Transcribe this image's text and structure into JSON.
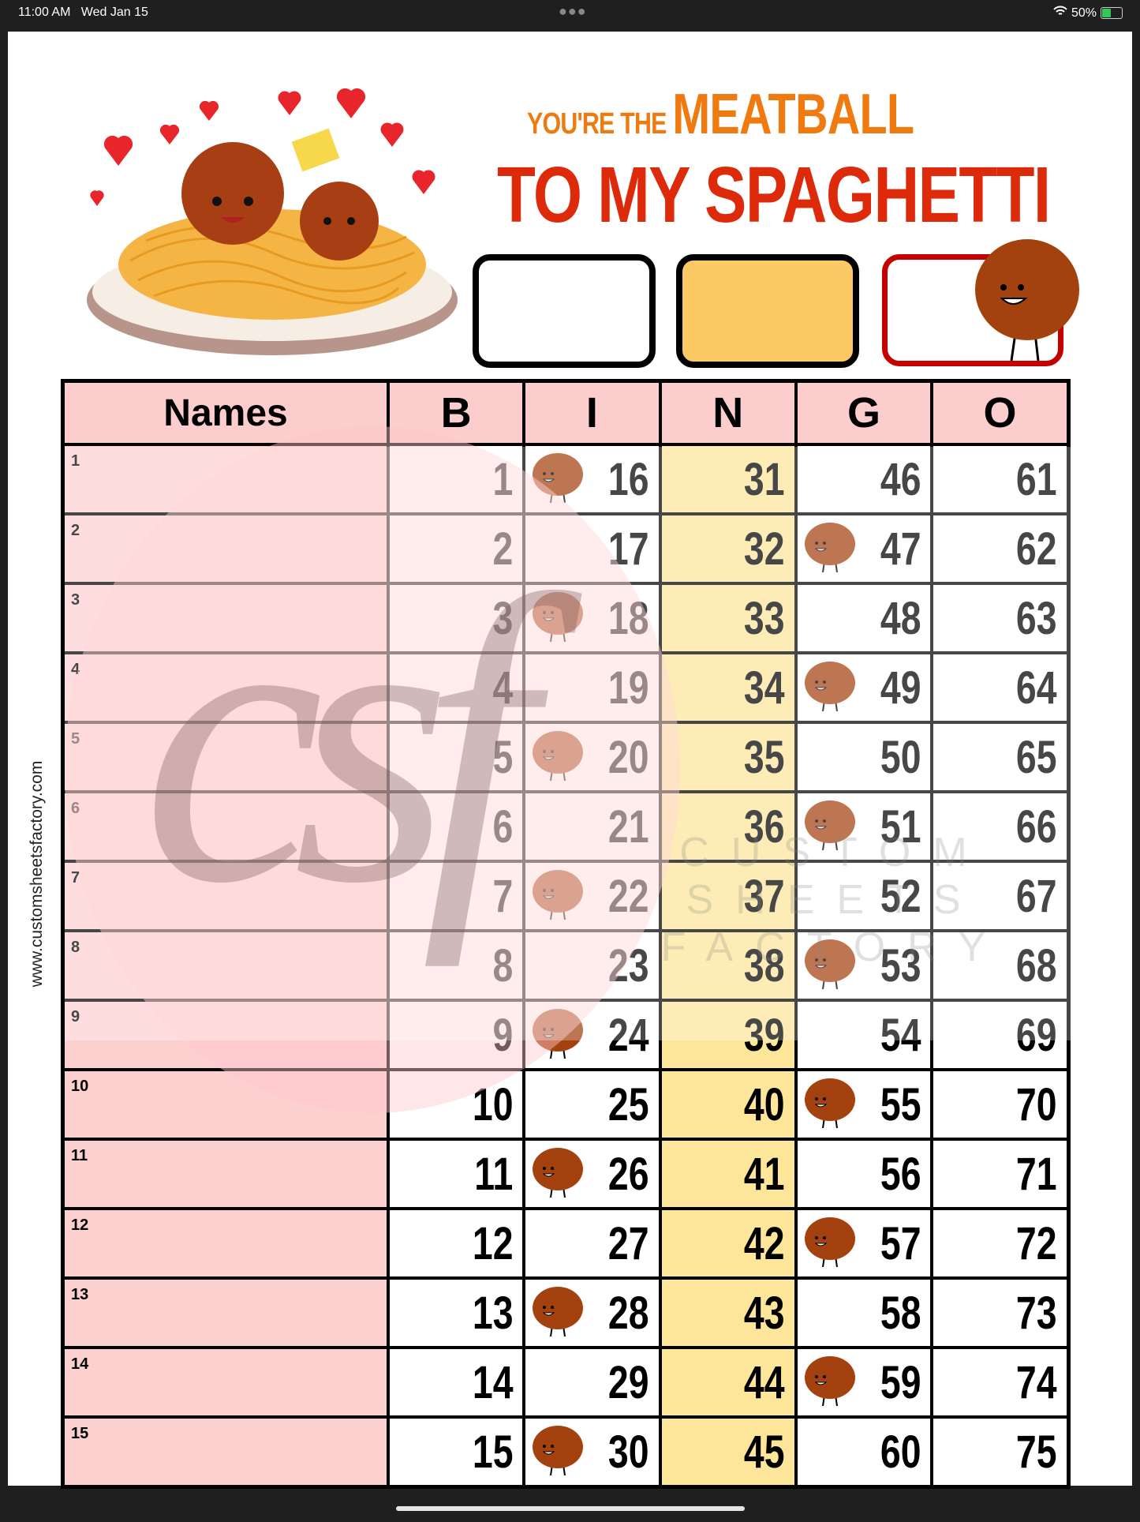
{
  "status_bar": {
    "time": "11:00 AM",
    "date": "Wed Jan 15",
    "battery": "50%",
    "battery_level": 0.5
  },
  "title": {
    "line1_small": "YOU'RE THE",
    "line1_big": "MEATBALL",
    "line2": "TO MY SPAGHETTI"
  },
  "color_boxes": [
    {
      "name": "white",
      "fill": "#ffffff",
      "border": "#000000"
    },
    {
      "name": "yellow",
      "fill": "#fdc964",
      "border": "#000000"
    },
    {
      "name": "red-outline",
      "fill": "#ffffff",
      "border": "#c40000"
    }
  ],
  "side_url": "www.customsheetsfactory.com",
  "watermark": {
    "logo": "csf",
    "text_line1": "CUSTOM SHEETS",
    "text_line2": "FACTORY"
  },
  "table": {
    "headers": [
      "Names",
      "B",
      "I",
      "N",
      "G",
      "O"
    ],
    "rows": [
      {
        "label": "1",
        "B": "1",
        "I": "16",
        "N": "31",
        "G": "46",
        "O": "61",
        "I_icon": true,
        "G_icon": false
      },
      {
        "label": "2",
        "B": "2",
        "I": "17",
        "N": "32",
        "G": "47",
        "O": "62",
        "I_icon": false,
        "G_icon": true
      },
      {
        "label": "3",
        "B": "3",
        "I": "18",
        "N": "33",
        "G": "48",
        "O": "63",
        "I_icon": true,
        "G_icon": false
      },
      {
        "label": "4",
        "B": "4",
        "I": "19",
        "N": "34",
        "G": "49",
        "O": "64",
        "I_icon": false,
        "G_icon": true
      },
      {
        "label": "5",
        "B": "5",
        "I": "20",
        "N": "35",
        "G": "50",
        "O": "65",
        "I_icon": true,
        "G_icon": false
      },
      {
        "label": "6",
        "B": "6",
        "I": "21",
        "N": "36",
        "G": "51",
        "O": "66",
        "I_icon": false,
        "G_icon": true
      },
      {
        "label": "7",
        "B": "7",
        "I": "22",
        "N": "37",
        "G": "52",
        "O": "67",
        "I_icon": true,
        "G_icon": false
      },
      {
        "label": "8",
        "B": "8",
        "I": "23",
        "N": "38",
        "G": "53",
        "O": "68",
        "I_icon": false,
        "G_icon": true
      },
      {
        "label": "9",
        "B": "9",
        "I": "24",
        "N": "39",
        "G": "54",
        "O": "69",
        "I_icon": true,
        "G_icon": false
      },
      {
        "label": "10",
        "B": "10",
        "I": "25",
        "N": "40",
        "G": "55",
        "O": "70",
        "I_icon": false,
        "G_icon": true
      },
      {
        "label": "11",
        "B": "11",
        "I": "26",
        "N": "41",
        "G": "56",
        "O": "71",
        "I_icon": true,
        "G_icon": false
      },
      {
        "label": "12",
        "B": "12",
        "I": "27",
        "N": "42",
        "G": "57",
        "O": "72",
        "I_icon": false,
        "G_icon": true
      },
      {
        "label": "13",
        "B": "13",
        "I": "28",
        "N": "43",
        "G": "58",
        "O": "73",
        "I_icon": true,
        "G_icon": false
      },
      {
        "label": "14",
        "B": "14",
        "I": "29",
        "N": "44",
        "G": "59",
        "O": "74",
        "I_icon": false,
        "G_icon": true
      },
      {
        "label": "15",
        "B": "15",
        "I": "30",
        "N": "45",
        "G": "60",
        "O": "75",
        "I_icon": true,
        "G_icon": false
      }
    ]
  },
  "colors": {
    "header_pink": "#fbcdcd",
    "names_pink": "#fdd0d0",
    "n_column": "#fde59a",
    "title_orange": "#ee7a10",
    "title_red": "#dd2a0a",
    "meatball": "#a4420f"
  }
}
